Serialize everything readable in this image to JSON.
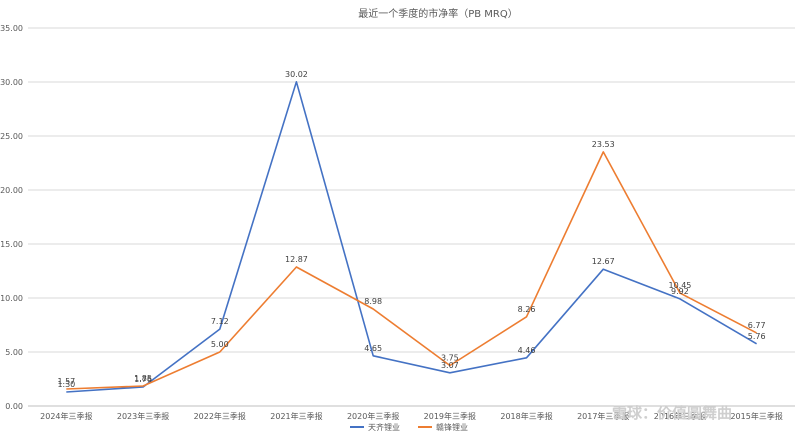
{
  "chart_data": {
    "type": "line",
    "title": "最近一个季度的市净率（PB MRQ）",
    "categories": [
      "2024年三季报",
      "2023年三季报",
      "2022年三季报",
      "2021年三季报",
      "2020年三季报",
      "2019年三季报",
      "2018年三季报",
      "2017年三季报",
      "2016年三季报",
      "2015年三季报"
    ],
    "series": [
      {
        "name": "天齐锂业",
        "color": "#4472C4",
        "values": [
          1.3,
          1.76,
          7.12,
          30.02,
          4.65,
          3.07,
          4.46,
          12.67,
          9.92,
          5.76
        ]
      },
      {
        "name": "赣锋锂业",
        "color": "#ED7D31",
        "values": [
          1.57,
          1.85,
          5.0,
          12.87,
          8.98,
          3.75,
          8.26,
          23.53,
          10.45,
          6.77
        ]
      }
    ],
    "ylim": [
      0,
      35
    ],
    "yticks": [
      "0.00",
      "5.00",
      "10.00",
      "15.00",
      "20.00",
      "25.00",
      "30.00",
      "35.00"
    ],
    "grid": true,
    "legend": "bottom"
  },
  "watermark": "雪球：价值圆舞曲"
}
